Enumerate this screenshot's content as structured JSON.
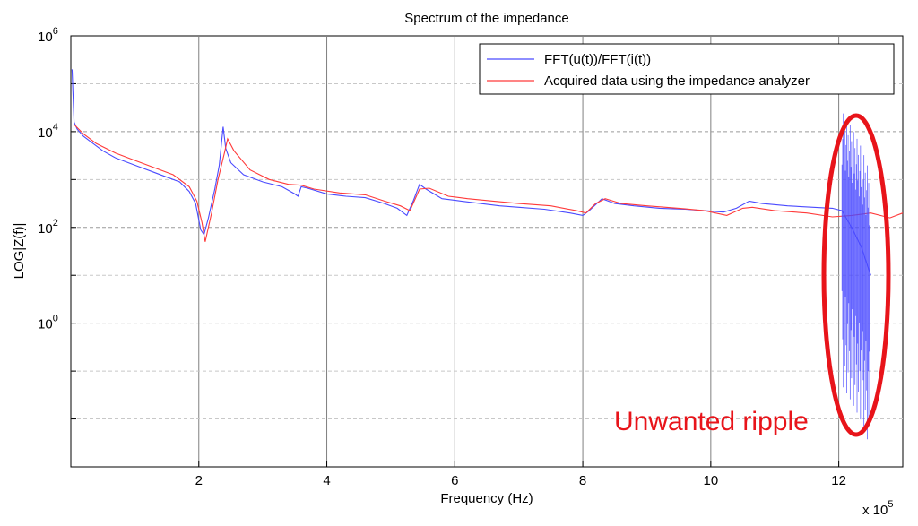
{
  "chart_data": {
    "type": "line",
    "title": "Spectrum of the impedance",
    "xlabel": "Frequency (Hz)",
    "ylabel": "LOG|Z(f)|",
    "x_multiplier": "x 10",
    "x_multiplier_exp": "5",
    "xlim": [
      0,
      13
    ],
    "ylim_log10": [
      -3,
      6
    ],
    "y_scale": "log",
    "grid": true,
    "legend_position": "top-right",
    "x_ticks": [
      {
        "value": 2,
        "label": "2"
      },
      {
        "value": 4,
        "label": "4"
      },
      {
        "value": 6,
        "label": "6"
      },
      {
        "value": 8,
        "label": "8"
      },
      {
        "value": 10,
        "label": "10"
      },
      {
        "value": 12,
        "label": "12"
      }
    ],
    "y_ticks": [
      {
        "exp": 6,
        "base": "10",
        "sup": "6"
      },
      {
        "exp": 4,
        "base": "10",
        "sup": "4"
      },
      {
        "exp": 2,
        "base": "10",
        "sup": "2"
      },
      {
        "exp": 0,
        "base": "10",
        "sup": "0"
      }
    ],
    "series": [
      {
        "name": "FFT(u(t))/FFT(i(t))",
        "color": "#4a4aff",
        "points": [
          [
            0.02,
            5.3
          ],
          [
            0.05,
            4.2
          ],
          [
            0.1,
            4.05
          ],
          [
            0.2,
            3.9
          ],
          [
            0.3,
            3.8
          ],
          [
            0.5,
            3.6
          ],
          [
            0.7,
            3.45
          ],
          [
            0.9,
            3.35
          ],
          [
            1.1,
            3.25
          ],
          [
            1.3,
            3.15
          ],
          [
            1.5,
            3.05
          ],
          [
            1.7,
            2.95
          ],
          [
            1.85,
            2.75
          ],
          [
            1.95,
            2.5
          ],
          [
            2.03,
            1.95
          ],
          [
            2.08,
            1.85
          ],
          [
            2.15,
            2.2
          ],
          [
            2.25,
            2.8
          ],
          [
            2.32,
            3.3
          ],
          [
            2.38,
            4.1
          ],
          [
            2.42,
            3.65
          ],
          [
            2.5,
            3.35
          ],
          [
            2.7,
            3.1
          ],
          [
            3.0,
            2.95
          ],
          [
            3.3,
            2.85
          ],
          [
            3.5,
            2.7
          ],
          [
            3.55,
            2.65
          ],
          [
            3.6,
            2.85
          ],
          [
            3.7,
            2.82
          ],
          [
            4.0,
            2.7
          ],
          [
            4.3,
            2.65
          ],
          [
            4.6,
            2.62
          ],
          [
            4.9,
            2.5
          ],
          [
            5.1,
            2.4
          ],
          [
            5.25,
            2.25
          ],
          [
            5.35,
            2.55
          ],
          [
            5.45,
            2.9
          ],
          [
            5.55,
            2.8
          ],
          [
            5.8,
            2.6
          ],
          [
            6.1,
            2.55
          ],
          [
            6.4,
            2.5
          ],
          [
            6.7,
            2.45
          ],
          [
            7.0,
            2.42
          ],
          [
            7.4,
            2.38
          ],
          [
            7.8,
            2.3
          ],
          [
            8.0,
            2.25
          ],
          [
            8.1,
            2.35
          ],
          [
            8.3,
            2.6
          ],
          [
            8.5,
            2.5
          ],
          [
            8.8,
            2.45
          ],
          [
            9.2,
            2.4
          ],
          [
            9.6,
            2.38
          ],
          [
            9.9,
            2.35
          ],
          [
            10.2,
            2.32
          ],
          [
            10.4,
            2.4
          ],
          [
            10.6,
            2.55
          ],
          [
            10.8,
            2.5
          ],
          [
            11.2,
            2.45
          ],
          [
            11.6,
            2.42
          ],
          [
            11.9,
            2.4
          ],
          [
            12.05,
            2.35
          ],
          [
            12.2,
            2.0
          ],
          [
            12.35,
            1.6
          ],
          [
            12.5,
            1.0
          ]
        ]
      },
      {
        "name": "Acquired data using the impedance analyzer",
        "color": "#ff3a3a",
        "points": [
          [
            0.05,
            4.15
          ],
          [
            0.2,
            3.95
          ],
          [
            0.4,
            3.75
          ],
          [
            0.7,
            3.55
          ],
          [
            1.0,
            3.4
          ],
          [
            1.3,
            3.25
          ],
          [
            1.6,
            3.1
          ],
          [
            1.85,
            2.85
          ],
          [
            1.97,
            2.55
          ],
          [
            2.05,
            2.1
          ],
          [
            2.1,
            1.7
          ],
          [
            2.2,
            2.3
          ],
          [
            2.3,
            3.0
          ],
          [
            2.4,
            3.55
          ],
          [
            2.45,
            3.85
          ],
          [
            2.55,
            3.6
          ],
          [
            2.8,
            3.2
          ],
          [
            3.1,
            3.0
          ],
          [
            3.4,
            2.9
          ],
          [
            3.6,
            2.88
          ],
          [
            3.8,
            2.8
          ],
          [
            4.2,
            2.72
          ],
          [
            4.6,
            2.68
          ],
          [
            4.9,
            2.55
          ],
          [
            5.15,
            2.45
          ],
          [
            5.3,
            2.35
          ],
          [
            5.45,
            2.8
          ],
          [
            5.6,
            2.82
          ],
          [
            5.9,
            2.65
          ],
          [
            6.2,
            2.6
          ],
          [
            6.6,
            2.55
          ],
          [
            7.0,
            2.5
          ],
          [
            7.5,
            2.45
          ],
          [
            7.9,
            2.35
          ],
          [
            8.05,
            2.3
          ],
          [
            8.2,
            2.5
          ],
          [
            8.35,
            2.6
          ],
          [
            8.6,
            2.5
          ],
          [
            9.0,
            2.45
          ],
          [
            9.5,
            2.4
          ],
          [
            9.9,
            2.35
          ],
          [
            10.25,
            2.25
          ],
          [
            10.5,
            2.4
          ],
          [
            10.65,
            2.42
          ],
          [
            11.0,
            2.35
          ],
          [
            11.5,
            2.3
          ],
          [
            11.9,
            2.22
          ],
          [
            12.2,
            2.25
          ],
          [
            12.5,
            2.3
          ],
          [
            12.8,
            2.2
          ],
          [
            13.0,
            2.3
          ]
        ]
      }
    ],
    "annotation": {
      "text": "Unwanted ripple",
      "color": "#e8141a",
      "shape": "ellipse"
    }
  }
}
